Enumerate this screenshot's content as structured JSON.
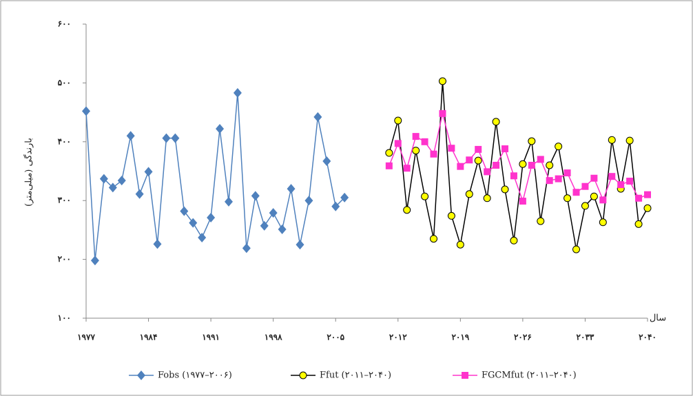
{
  "chart_data": {
    "type": "line",
    "y_label": "بارندگی (میلی‌متر)",
    "x_label": "سال",
    "xlim": [
      1977,
      2040
    ],
    "ylim": [
      100,
      600
    ],
    "xticks": [
      {
        "value": 1977,
        "label": "۱۹۷۷"
      },
      {
        "value": 1984,
        "label": "۱۹۸۴"
      },
      {
        "value": 1991,
        "label": "۱۹۹۱"
      },
      {
        "value": 1998,
        "label": "۱۹۹۸"
      },
      {
        "value": 2005,
        "label": "۲۰۰۵"
      },
      {
        "value": 2012,
        "label": "۲۰۱۲"
      },
      {
        "value": 2019,
        "label": "۲۰۱۹"
      },
      {
        "value": 2026,
        "label": "۲۰۲۶"
      },
      {
        "value": 2033,
        "label": "۲۰۳۳"
      },
      {
        "value": 2040,
        "label": "۲۰۴۰"
      }
    ],
    "yticks": [
      {
        "value": 100,
        "label": "۱۰۰"
      },
      {
        "value": 200,
        "label": "۲۰۰"
      },
      {
        "value": 300,
        "label": "۳۰۰"
      },
      {
        "value": 400,
        "label": "۴۰۰"
      },
      {
        "value": 500,
        "label": "۵۰۰"
      },
      {
        "value": 600,
        "label": "۶۰۰"
      }
    ],
    "series": [
      {
        "name": "Fobs (۱۹۷۷–۲۰۰۶)",
        "color": "#4f81bd",
        "marker": "diamond",
        "marker_fill": "#4f81bd",
        "x": [
          1977,
          1978,
          1979,
          1980,
          1981,
          1982,
          1983,
          1984,
          1985,
          1986,
          1987,
          1988,
          1989,
          1990,
          1991,
          1992,
          1993,
          1994,
          1995,
          1996,
          1997,
          1998,
          1999,
          2000,
          2001,
          2002,
          2003,
          2004,
          2005,
          2006
        ],
        "values": [
          452,
          198,
          337,
          322,
          334,
          410,
          311,
          349,
          226,
          406,
          406,
          282,
          262,
          237,
          271,
          422,
          298,
          483,
          219,
          308,
          257,
          279,
          251,
          320,
          225,
          300,
          442,
          367,
          290,
          305
        ]
      },
      {
        "name": "Ffut (۲۰۱۱–۲۰۴۰)",
        "color": "#000000",
        "marker": "circle",
        "marker_fill": "#ffff00",
        "x": [
          2011,
          2012,
          2013,
          2014,
          2015,
          2016,
          2017,
          2018,
          2019,
          2020,
          2021,
          2022,
          2023,
          2024,
          2025,
          2026,
          2027,
          2028,
          2029,
          2030,
          2031,
          2032,
          2033,
          2034,
          2035,
          2036,
          2037,
          2038,
          2039,
          2040
        ],
        "values": [
          381,
          436,
          284,
          385,
          307,
          235,
          503,
          274,
          225,
          311,
          368,
          304,
          434,
          319,
          232,
          362,
          401,
          265,
          360,
          392,
          304,
          217,
          291,
          307,
          263,
          403,
          320,
          402,
          260,
          287
        ]
      },
      {
        "name": "FGCMfut (۲۰۱۱–۲۰۴۰)",
        "color": "#ff33cc",
        "marker": "square",
        "marker_fill": "#ff33cc",
        "x": [
          2011,
          2012,
          2013,
          2014,
          2015,
          2016,
          2017,
          2018,
          2019,
          2020,
          2021,
          2022,
          2023,
          2024,
          2025,
          2026,
          2027,
          2028,
          2029,
          2030,
          2031,
          2032,
          2033,
          2034,
          2035,
          2036,
          2037,
          2038,
          2039,
          2040
        ],
        "values": [
          359,
          397,
          355,
          409,
          400,
          379,
          448,
          389,
          358,
          369,
          387,
          349,
          360,
          388,
          342,
          299,
          360,
          370,
          334,
          337,
          347,
          314,
          324,
          338,
          301,
          341,
          327,
          333,
          304,
          310
        ]
      }
    ]
  }
}
